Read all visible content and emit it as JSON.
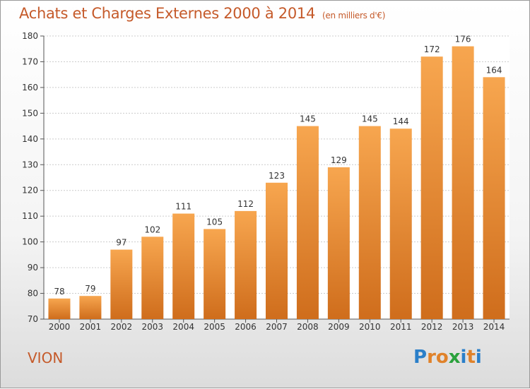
{
  "title": "Achats et Charges Externes 2000 à 2014",
  "unit": "(en milliers d'€)",
  "place": "VION",
  "logo": {
    "letters": [
      "P",
      "r",
      "o",
      "x",
      "i",
      "t",
      "i"
    ],
    "colors": [
      "#2a7fc9",
      "#e0822a",
      "#e0822a",
      "#2aa13c",
      "#2a7fc9",
      "#e0822a",
      "#2a7fc9"
    ]
  },
  "colors": {
    "bar_top": "#f7a64f",
    "bar_bottom": "#cf6d1c",
    "grid": "#cccccc",
    "axis": "#555555"
  },
  "chart_data": {
    "type": "bar",
    "categories": [
      "2000",
      "2001",
      "2002",
      "2003",
      "2004",
      "2005",
      "2006",
      "2007",
      "2008",
      "2009",
      "2010",
      "2011",
      "2012",
      "2013",
      "2014"
    ],
    "values": [
      78,
      79,
      97,
      102,
      111,
      105,
      112,
      123,
      145,
      129,
      145,
      144,
      172,
      176,
      164
    ],
    "ylim": [
      70,
      180
    ],
    "yticks": [
      70,
      80,
      90,
      100,
      110,
      120,
      130,
      140,
      150,
      160,
      170,
      180
    ],
    "grid": true
  }
}
